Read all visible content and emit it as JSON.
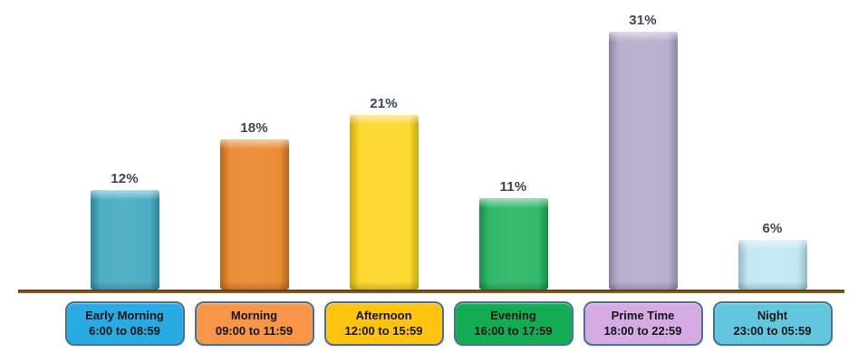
{
  "chart_data": {
    "type": "bar",
    "title": "",
    "xlabel": "",
    "ylabel": "",
    "ylim": [
      0,
      35
    ],
    "grid": false,
    "legend_position": "none",
    "value_label_position": "above-bar",
    "categories": [
      "Early Morning",
      "Morning",
      "Afternoon",
      "Evening",
      "Prime Time",
      "Night"
    ],
    "time_ranges": [
      "6:00 to 08:59",
      "09:00 to 11:59",
      "12:00 to 15:59",
      "16:00 to 17:59",
      "18:00 to 22:59",
      "23:00 to 05:59"
    ],
    "values": [
      12,
      18,
      21,
      11,
      31,
      6
    ],
    "value_labels": [
      "12%",
      "18%",
      "21%",
      "11%",
      "31%",
      "6%"
    ],
    "bar_colors": [
      "#3aa5be",
      "#e8801f",
      "#fed318",
      "#1bb15a",
      "#b1a6ca",
      "#bce7f2"
    ],
    "box_colors": [
      "#2aaae3",
      "#f79646",
      "#fec30f",
      "#13ac52",
      "#d5abe4",
      "#62c7dc"
    ],
    "box_border_color": "#47719c",
    "axis_line_color": "#7c4f1f",
    "value_text_color": "#3e4753"
  }
}
